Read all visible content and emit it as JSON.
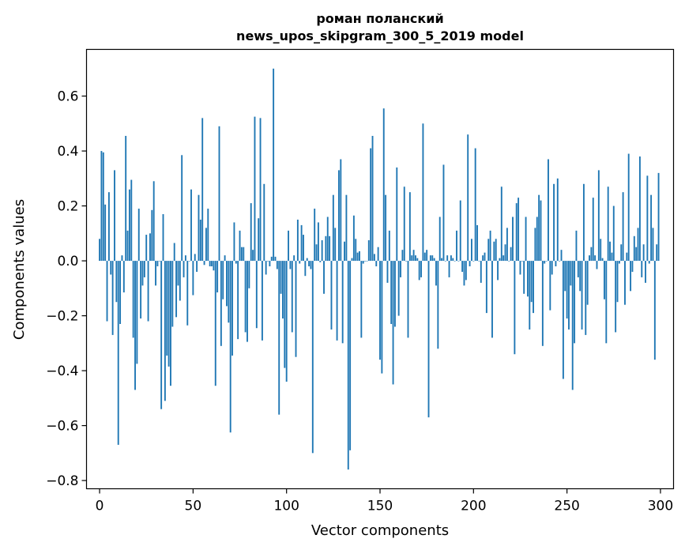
{
  "chart_data": {
    "type": "bar",
    "title": "роман поланский",
    "subtitle": "news_upos_skipgram_300_5_2019 model",
    "xlabel": "Vector components",
    "ylabel": "Components values",
    "xlim": [
      -7,
      307
    ],
    "ylim": [
      -0.83,
      0.77
    ],
    "xticks": [
      0,
      50,
      100,
      150,
      200,
      250,
      300
    ],
    "xtick_labels": [
      "0",
      "50",
      "100",
      "150",
      "200",
      "250",
      "300"
    ],
    "yticks": [
      -0.8,
      -0.6,
      -0.4,
      -0.2,
      0.0,
      0.2,
      0.4,
      0.6
    ],
    "ytick_labels": [
      "−0.8",
      "−0.6",
      "−0.4",
      "−0.2",
      "0.0",
      "0.2",
      "0.4",
      "0.6"
    ],
    "grid": false,
    "color": "#1f77b4",
    "x": [
      0,
      1,
      2,
      3,
      4,
      5,
      6,
      7,
      8,
      9,
      10,
      11,
      12,
      13,
      14,
      15,
      16,
      17,
      18,
      19,
      20,
      21,
      22,
      23,
      24,
      25,
      26,
      27,
      28,
      29,
      30,
      31,
      32,
      33,
      34,
      35,
      36,
      37,
      38,
      39,
      40,
      41,
      42,
      43,
      44,
      45,
      46,
      47,
      48,
      49,
      50,
      51,
      52,
      53,
      54,
      55,
      56,
      57,
      58,
      59,
      60,
      61,
      62,
      63,
      64,
      65,
      66,
      67,
      68,
      69,
      70,
      71,
      72,
      73,
      74,
      75,
      76,
      77,
      78,
      79,
      80,
      81,
      82,
      83,
      84,
      85,
      86,
      87,
      88,
      89,
      90,
      91,
      92,
      93,
      94,
      95,
      96,
      97,
      98,
      99,
      100,
      101,
      102,
      103,
      104,
      105,
      106,
      107,
      108,
      109,
      110,
      111,
      112,
      113,
      114,
      115,
      116,
      117,
      118,
      119,
      120,
      121,
      122,
      123,
      124,
      125,
      126,
      127,
      128,
      129,
      130,
      131,
      132,
      133,
      134,
      135,
      136,
      137,
      138,
      139,
      140,
      141,
      142,
      143,
      144,
      145,
      146,
      147,
      148,
      149,
      150,
      151,
      152,
      153,
      154,
      155,
      156,
      157,
      158,
      159,
      160,
      161,
      162,
      163,
      164,
      165,
      166,
      167,
      168,
      169,
      170,
      171,
      172,
      173,
      174,
      175,
      176,
      177,
      178,
      179,
      180,
      181,
      182,
      183,
      184,
      185,
      186,
      187,
      188,
      189,
      190,
      191,
      192,
      193,
      194,
      195,
      196,
      197,
      198,
      199,
      200,
      201,
      202,
      203,
      204,
      205,
      206,
      207,
      208,
      209,
      210,
      211,
      212,
      213,
      214,
      215,
      216,
      217,
      218,
      219,
      220,
      221,
      222,
      223,
      224,
      225,
      226,
      227,
      228,
      229,
      230,
      231,
      232,
      233,
      234,
      235,
      236,
      237,
      238,
      239,
      240,
      241,
      242,
      243,
      244,
      245,
      246,
      247,
      248,
      249,
      250,
      251,
      252,
      253,
      254,
      255,
      256,
      257,
      258,
      259,
      260,
      261,
      262,
      263,
      264,
      265,
      266,
      267,
      268,
      269,
      270,
      271,
      272,
      273,
      274,
      275,
      276,
      277,
      278,
      279,
      280,
      281,
      282,
      283,
      284,
      285,
      286,
      287,
      288,
      289,
      290,
      291,
      292,
      293,
      294,
      295,
      296,
      297,
      298,
      299
    ],
    "values": [
      0.08,
      0.4,
      0.395,
      0.205,
      -0.22,
      0.25,
      -0.05,
      -0.27,
      0.33,
      -0.15,
      -0.67,
      -0.23,
      0.02,
      -0.115,
      0.455,
      0.11,
      0.26,
      0.295,
      -0.28,
      -0.47,
      -0.375,
      0.19,
      -0.21,
      -0.09,
      -0.06,
      0.095,
      -0.22,
      0.1,
      0.185,
      0.29,
      -0.09,
      -0.02,
      0.0,
      -0.54,
      0.17,
      -0.51,
      -0.345,
      -0.385,
      -0.455,
      -0.24,
      0.065,
      -0.205,
      -0.09,
      -0.145,
      0.385,
      -0.06,
      0.02,
      -0.235,
      0.0,
      0.26,
      -0.125,
      0.025,
      -0.04,
      0.24,
      0.15,
      0.52,
      -0.015,
      0.12,
      0.19,
      -0.02,
      -0.02,
      -0.035,
      -0.455,
      -0.115,
      0.49,
      -0.31,
      -0.14,
      0.02,
      -0.165,
      -0.225,
      -0.625,
      -0.345,
      0.14,
      -0.01,
      -0.285,
      0.11,
      0.05,
      0.05,
      -0.26,
      -0.295,
      -0.1,
      0.21,
      0.04,
      0.525,
      -0.245,
      0.155,
      0.52,
      -0.29,
      0.28,
      -0.05,
      0.0,
      -0.02,
      0.015,
      0.7,
      0.015,
      -0.03,
      -0.56,
      -0.12,
      -0.21,
      -0.39,
      -0.44,
      0.11,
      -0.03,
      -0.26,
      0.02,
      -0.35,
      0.15,
      -0.01,
      0.13,
      0.095,
      -0.055,
      0.01,
      -0.02,
      -0.03,
      -0.7,
      0.19,
      0.06,
      0.14,
      -0.005,
      0.075,
      -0.12,
      0.09,
      0.16,
      0.09,
      -0.25,
      0.24,
      0.12,
      -0.29,
      0.33,
      0.37,
      -0.3,
      0.07,
      0.24,
      -0.76,
      -0.69,
      0.01,
      0.165,
      0.08,
      0.03,
      0.035,
      -0.28,
      -0.01,
      0.0,
      0.0,
      0.075,
      0.41,
      0.455,
      0.025,
      -0.02,
      0.05,
      -0.36,
      -0.41,
      0.555,
      0.24,
      -0.08,
      0.11,
      -0.23,
      -0.45,
      -0.24,
      0.34,
      -0.2,
      -0.06,
      0.04,
      0.27,
      0.0,
      -0.28,
      0.25,
      0.02,
      0.04,
      0.02,
      0.01,
      -0.07,
      -0.06,
      0.5,
      0.03,
      0.04,
      -0.57,
      0.02,
      0.02,
      0.01,
      -0.09,
      -0.32,
      0.16,
      0.01,
      0.35,
      0.0,
      0.02,
      -0.06,
      0.02,
      0.01,
      0.0,
      0.11,
      0.0,
      0.22,
      -0.04,
      -0.09,
      -0.07,
      0.46,
      -0.02,
      0.08,
      0.0,
      0.41,
      0.13,
      0.0,
      -0.08,
      0.02,
      0.03,
      -0.19,
      0.08,
      0.11,
      -0.28,
      0.07,
      0.08,
      -0.07,
      0.01,
      0.27,
      0.02,
      0.06,
      0.12,
      0.0,
      0.05,
      0.16,
      -0.34,
      0.21,
      0.23,
      -0.05,
      0.0,
      -0.12,
      0.16,
      -0.13,
      -0.25,
      -0.15,
      -0.19,
      0.12,
      0.16,
      0.24,
      0.22,
      -0.31,
      -0.01,
      0.0,
      0.37,
      -0.18,
      -0.05,
      0.28,
      -0.02,
      0.3,
      0.0,
      0.04,
      -0.43,
      -0.11,
      -0.21,
      -0.25,
      -0.09,
      -0.47,
      -0.3,
      0.11,
      -0.06,
      -0.11,
      -0.25,
      0.28,
      -0.27,
      -0.16,
      0.02,
      0.05,
      0.23,
      0.02,
      -0.03,
      0.33,
      0.08,
      0.01,
      -0.14,
      -0.3,
      0.27,
      0.07,
      0.03,
      0.2,
      -0.26,
      -0.15,
      -0.01,
      0.06,
      0.25,
      -0.16,
      0.03,
      0.39,
      -0.11,
      -0.04,
      0.09,
      0.05,
      0.12,
      0.38,
      -0.06,
      0.06,
      -0.08,
      0.31,
      -0.01,
      0.24,
      0.12,
      -0.36,
      0.06,
      0.32
    ]
  }
}
